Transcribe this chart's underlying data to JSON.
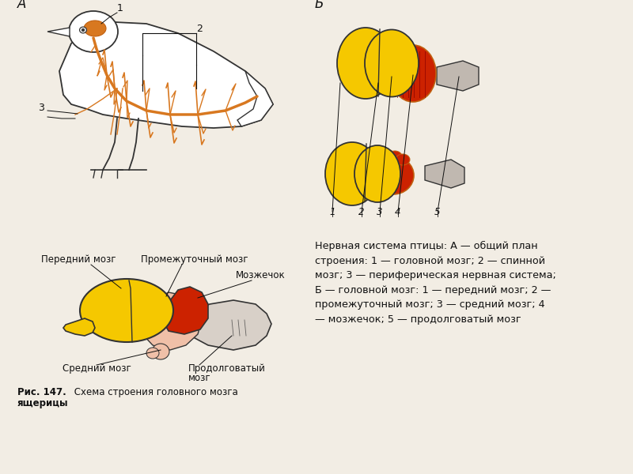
{
  "bg_color": "#f2ede4",
  "title_A": "А",
  "title_B": "Б",
  "caption_text": "Нервная система птицы: А — общий план\nстроения: 1 — головной мозг; 2 — спинной\nмозг; 3 — периферическая нервная система;\nБ — головной мозг: 1 — передний мозг; 2 —\nпромежуточный мозг; 3 — средний мозг; 4\n— мозжечок; 5 — продолговатый мозг",
  "bottom_caption_bold": "Рис. 147.",
  "bottom_caption_normal": " Схема строения головного мозга\nящерицы",
  "yellow": "#f5c800",
  "red": "#cc2200",
  "pink": "#e8a090",
  "gray": "#c0b8b0",
  "light_gray": "#d8d0c8",
  "light_pink": "#f0c0a8",
  "orange": "#d87820",
  "dark_orange": "#c06010",
  "outline": "#333333",
  "label_color": "#111111"
}
